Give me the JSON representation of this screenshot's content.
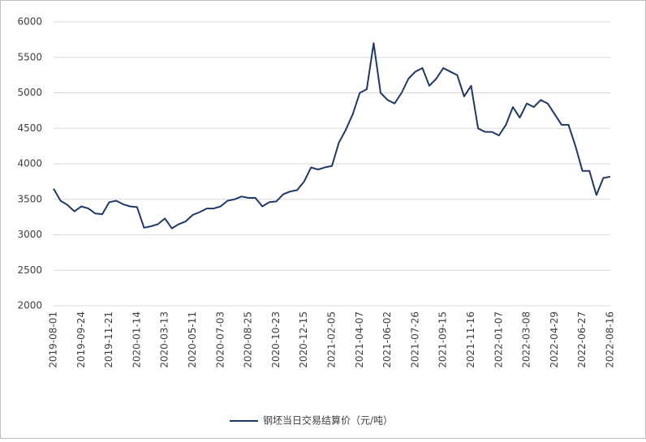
{
  "chart_data": {
    "type": "line",
    "categories": [
      "2019-08-01",
      null,
      null,
      null,
      "2019-09-24",
      null,
      null,
      null,
      "2019-11-21",
      null,
      null,
      null,
      "2020-01-14",
      null,
      null,
      null,
      "2020-03-13",
      null,
      null,
      null,
      "2020-05-11",
      null,
      null,
      null,
      "2020-07-03",
      null,
      null,
      null,
      "2020-08-25",
      null,
      null,
      null,
      "2020-10-23",
      null,
      null,
      null,
      "2020-12-15",
      null,
      null,
      null,
      "2021-02-05",
      null,
      null,
      null,
      "2021-04-07",
      null,
      null,
      null,
      "2021-06-02",
      null,
      null,
      null,
      "2021-07-26",
      null,
      null,
      null,
      "2021-09-15",
      null,
      null,
      null,
      "2021-11-16",
      null,
      null,
      null,
      "2022-01-07",
      null,
      null,
      null,
      "2022-03-08",
      null,
      null,
      null,
      "2022-04-29",
      null,
      null,
      null,
      "2022-06-27",
      null,
      null,
      null,
      "2022-08-16"
    ],
    "series": [
      {
        "name": "钢坯当日交易结算价（元/吨）",
        "color": "#203864",
        "values": [
          3650,
          3480,
          3420,
          3330,
          3400,
          3370,
          3300,
          3290,
          3460,
          3480,
          3430,
          3400,
          3390,
          3100,
          3120,
          3150,
          3230,
          3090,
          3150,
          3190,
          3280,
          3320,
          3370,
          3370,
          3400,
          3480,
          3500,
          3540,
          3520,
          3520,
          3400,
          3460,
          3470,
          3570,
          3610,
          3630,
          3750,
          3950,
          3920,
          3950,
          3970,
          4300,
          4480,
          4700,
          5000,
          5050,
          5700,
          5000,
          4900,
          4850,
          5000,
          5200,
          5300,
          5350,
          5100,
          5200,
          5350,
          5300,
          5250,
          4950,
          5100,
          4500,
          4450,
          4450,
          4400,
          4550,
          4800,
          4650,
          4850,
          4800,
          4900,
          4850,
          4700,
          4550,
          4550,
          4250,
          3900,
          3900,
          3560,
          3800,
          3820
        ]
      }
    ],
    "ylim": [
      2000,
      6000
    ],
    "yticks": [
      2000,
      2500,
      3000,
      3500,
      4000,
      4500,
      5000,
      5500,
      6000
    ],
    "grid": true,
    "legend": "bottom"
  }
}
